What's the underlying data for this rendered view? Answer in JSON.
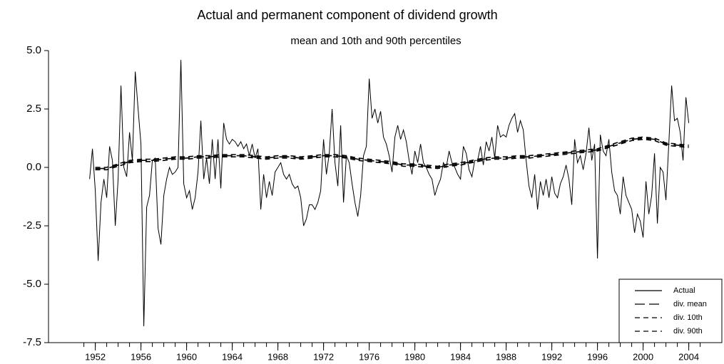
{
  "chart_data": {
    "type": "line",
    "title": "Actual and permanent component of dividend growth",
    "subtitle": "mean and 10th and 90th percentiles",
    "x": [
      1951.5,
      1951.75,
      1952,
      1952.25,
      1952.5,
      1952.75,
      1953,
      1953.25,
      1953.5,
      1953.75,
      1954,
      1954.25,
      1954.5,
      1954.75,
      1955,
      1955.25,
      1955.5,
      1955.75,
      1956,
      1956.25,
      1956.5,
      1956.75,
      1957,
      1957.25,
      1957.5,
      1957.75,
      1958,
      1958.25,
      1958.5,
      1958.75,
      1959,
      1959.25,
      1959.5,
      1959.75,
      1960,
      1960.25,
      1960.5,
      1960.75,
      1961,
      1961.25,
      1961.5,
      1961.75,
      1962,
      1962.25,
      1962.5,
      1962.75,
      1963,
      1963.25,
      1963.5,
      1963.75,
      1964,
      1964.25,
      1964.5,
      1964.75,
      1965,
      1965.25,
      1965.5,
      1965.75,
      1966,
      1966.25,
      1966.5,
      1966.75,
      1967,
      1967.25,
      1967.5,
      1967.75,
      1968,
      1968.25,
      1968.5,
      1968.75,
      1969,
      1969.25,
      1969.5,
      1969.75,
      1970,
      1970.25,
      1970.5,
      1970.75,
      1971,
      1971.25,
      1971.5,
      1971.75,
      1972,
      1972.25,
      1972.5,
      1972.75,
      1973,
      1973.25,
      1973.5,
      1973.75,
      1974,
      1974.25,
      1974.5,
      1974.75,
      1975,
      1975.25,
      1975.5,
      1975.75,
      1976,
      1976.25,
      1976.5,
      1976.75,
      1977,
      1977.25,
      1977.5,
      1977.75,
      1978,
      1978.25,
      1978.5,
      1978.75,
      1979,
      1979.25,
      1979.5,
      1979.75,
      1980,
      1980.25,
      1980.5,
      1980.75,
      1981,
      1981.25,
      1981.5,
      1981.75,
      1982,
      1982.25,
      1982.5,
      1982.75,
      1983,
      1983.25,
      1983.5,
      1983.75,
      1984,
      1984.25,
      1984.5,
      1984.75,
      1985,
      1985.25,
      1985.5,
      1985.75,
      1986,
      1986.25,
      1986.5,
      1986.75,
      1987,
      1987.25,
      1987.5,
      1987.75,
      1988,
      1988.25,
      1988.5,
      1988.75,
      1989,
      1989.25,
      1989.5,
      1989.75,
      1990,
      1990.25,
      1990.5,
      1990.75,
      1991,
      1991.25,
      1991.5,
      1991.75,
      1992,
      1992.25,
      1992.5,
      1992.75,
      1993,
      1993.25,
      1993.5,
      1993.75,
      1994,
      1994.25,
      1994.5,
      1994.75,
      1995,
      1995.25,
      1995.5,
      1995.75,
      1996,
      1996.25,
      1996.5,
      1996.75,
      1997,
      1997.25,
      1997.5,
      1997.75,
      1998,
      1998.25,
      1998.5,
      1998.75,
      1999,
      1999.25,
      1999.5,
      1999.75,
      2000,
      2000.25,
      2000.5,
      2000.75,
      2001,
      2001.25,
      2001.5,
      2001.75,
      2002,
      2002.25,
      2002.5,
      2002.75,
      2003,
      2003.25,
      2003.5,
      2003.75,
      2004
    ],
    "series": [
      {
        "name": "Actual",
        "color": "#000000",
        "dash": "solid",
        "values": [
          -0.5,
          0.8,
          -1.0,
          -4.0,
          -1.5,
          -0.5,
          -1.3,
          0.9,
          0.3,
          -2.5,
          -0.5,
          3.5,
          0.0,
          -0.4,
          1.5,
          0.3,
          4.1,
          2.5,
          1.0,
          -6.8,
          -1.7,
          -1.2,
          0.3,
          0.4,
          -2.6,
          -3.3,
          -1.2,
          -0.5,
          0.0,
          -0.3,
          -0.2,
          0.0,
          4.6,
          -0.7,
          -1.3,
          -1.0,
          -1.8,
          -1.3,
          -0.2,
          2.0,
          -0.5,
          0.4,
          -0.7,
          1.2,
          -0.5,
          1.2,
          -0.9,
          1.9,
          1.2,
          1.0,
          1.2,
          1.1,
          0.9,
          1.1,
          0.8,
          1.0,
          0.5,
          1.0,
          0.4,
          0.8,
          -1.8,
          -0.3,
          -1.3,
          -0.6,
          -1.2,
          -0.2,
          0.0,
          0.2,
          -0.3,
          -0.5,
          -0.3,
          -0.7,
          -0.9,
          -0.8,
          -1.3,
          -2.5,
          -2.2,
          -1.6,
          -1.6,
          -1.8,
          -1.5,
          -1.0,
          1.2,
          -0.3,
          0.6,
          2.5,
          0.2,
          -0.8,
          1.8,
          -1.5,
          0.5,
          0.2,
          -0.7,
          -1.5,
          -2.1,
          -1.2,
          0.5,
          0.9,
          3.8,
          2.1,
          2.5,
          1.9,
          2.4,
          1.3,
          1.0,
          0.5,
          -0.2,
          1.3,
          1.8,
          1.2,
          1.6,
          1.1,
          0.3,
          -0.3,
          0.7,
          0.2,
          1.0,
          0.2,
          0.0,
          -0.3,
          -0.5,
          -1.2,
          -0.8,
          -0.5,
          0.2,
          0.0,
          0.7,
          0.2,
          0.0,
          -0.3,
          -0.5,
          0.9,
          0.6,
          -0.1,
          -0.4,
          0.3,
          0.3,
          0.9,
          0.1,
          1.1,
          0.7,
          1.3,
          0.4,
          1.8,
          1.3,
          1.4,
          1.3,
          1.8,
          2.1,
          2.3,
          1.5,
          2.0,
          1.6,
          0.3,
          -0.8,
          -1.3,
          -0.3,
          -1.8,
          -0.6,
          -1.2,
          -0.5,
          -1.3,
          -0.4,
          -1.1,
          -1.3,
          -0.7,
          -0.4,
          0.1,
          -0.5,
          -1.6,
          1.2,
          0.2,
          0.5,
          -0.1,
          0.6,
          1.7,
          0.3,
          1.0,
          -3.9,
          1.4,
          0.7,
          0.5,
          1.2,
          -0.2,
          -1.0,
          -1.2,
          -2.0,
          -0.4,
          -1.2,
          -1.5,
          -1.8,
          -2.8,
          -2.0,
          -2.3,
          -3.0,
          -0.6,
          -2.0,
          -1.2,
          0.6,
          -2.4,
          0.0,
          -0.2,
          -1.4,
          1.0,
          3.5,
          2.0,
          2.1,
          1.5,
          0.3,
          3.0,
          1.9
        ]
      },
      {
        "name": "div. mean",
        "color": "#000000",
        "dash": "long",
        "x": [
          1952,
          1953,
          1954,
          1955,
          1956,
          1957,
          1958,
          1959,
          1960,
          1961,
          1962,
          1963,
          1964,
          1965,
          1966,
          1967,
          1968,
          1969,
          1970,
          1971,
          1972,
          1973,
          1974,
          1975,
          1976,
          1977,
          1978,
          1979,
          1980,
          1981,
          1982,
          1983,
          1984,
          1985,
          1986,
          1987,
          1988,
          1989,
          1990,
          1991,
          1992,
          1993,
          1994,
          1995,
          1996,
          1997,
          1998,
          1999,
          2000,
          2001,
          2002,
          2003,
          2004
        ],
        "values": [
          -0.05,
          -0.05,
          0.1,
          0.25,
          0.3,
          0.3,
          0.35,
          0.4,
          0.4,
          0.45,
          0.45,
          0.5,
          0.5,
          0.5,
          0.45,
          0.4,
          0.45,
          0.45,
          0.4,
          0.45,
          0.5,
          0.5,
          0.45,
          0.35,
          0.3,
          0.25,
          0.2,
          0.1,
          0.1,
          0.05,
          0.0,
          0.1,
          0.15,
          0.25,
          0.35,
          0.4,
          0.4,
          0.45,
          0.45,
          0.5,
          0.55,
          0.6,
          0.65,
          0.7,
          0.75,
          0.9,
          1.05,
          1.2,
          1.25,
          1.2,
          1.0,
          0.95,
          0.9
        ]
      },
      {
        "name": "div. 10th",
        "color": "#000000",
        "dash": "short",
        "x": [
          1952,
          1953,
          1954,
          1955,
          1956,
          1957,
          1958,
          1959,
          1960,
          1961,
          1962,
          1963,
          1964,
          1965,
          1966,
          1967,
          1968,
          1969,
          1970,
          1971,
          1972,
          1973,
          1974,
          1975,
          1976,
          1977,
          1978,
          1979,
          1980,
          1981,
          1982,
          1983,
          1984,
          1985,
          1986,
          1987,
          1988,
          1989,
          1990,
          1991,
          1992,
          1993,
          1994,
          1995,
          1996,
          1997,
          1998,
          1999,
          2000,
          2001,
          2002,
          2003,
          2004
        ],
        "values": [
          -0.1,
          -0.1,
          0.05,
          0.2,
          0.25,
          0.25,
          0.3,
          0.35,
          0.35,
          0.4,
          0.4,
          0.45,
          0.45,
          0.45,
          0.4,
          0.35,
          0.4,
          0.4,
          0.35,
          0.4,
          0.45,
          0.45,
          0.4,
          0.3,
          0.25,
          0.2,
          0.15,
          0.05,
          0.05,
          0.0,
          -0.05,
          0.05,
          0.1,
          0.2,
          0.3,
          0.35,
          0.35,
          0.4,
          0.4,
          0.45,
          0.5,
          0.55,
          0.6,
          0.65,
          0.7,
          0.85,
          1.0,
          1.15,
          1.2,
          1.15,
          0.95,
          0.9,
          0.85
        ]
      },
      {
        "name": "div. 90th",
        "color": "#000000",
        "dash": "short",
        "x": [
          1952,
          1953,
          1954,
          1955,
          1956,
          1957,
          1958,
          1959,
          1960,
          1961,
          1962,
          1963,
          1964,
          1965,
          1966,
          1967,
          1968,
          1969,
          1970,
          1971,
          1972,
          1973,
          1974,
          1975,
          1976,
          1977,
          1978,
          1979,
          1980,
          1981,
          1982,
          1983,
          1984,
          1985,
          1986,
          1987,
          1988,
          1989,
          1990,
          1991,
          1992,
          1993,
          1994,
          1995,
          1996,
          1997,
          1998,
          1999,
          2000,
          2001,
          2002,
          2003,
          2004
        ],
        "values": [
          0.0,
          0.0,
          0.15,
          0.3,
          0.35,
          0.35,
          0.4,
          0.45,
          0.45,
          0.5,
          0.5,
          0.55,
          0.55,
          0.55,
          0.5,
          0.45,
          0.5,
          0.5,
          0.45,
          0.5,
          0.55,
          0.55,
          0.5,
          0.4,
          0.35,
          0.3,
          0.25,
          0.15,
          0.15,
          0.1,
          0.05,
          0.15,
          0.2,
          0.3,
          0.4,
          0.45,
          0.45,
          0.5,
          0.5,
          0.55,
          0.6,
          0.65,
          0.7,
          0.75,
          0.8,
          0.95,
          1.1,
          1.25,
          1.3,
          1.25,
          1.05,
          1.0,
          0.95
        ]
      }
    ],
    "xlim": [
      1947.9,
      2006.9
    ],
    "xticks": [
      1952,
      1956,
      1960,
      1964,
      1968,
      1972,
      1976,
      1980,
      1984,
      1988,
      1992,
      1996,
      2000,
      2004
    ],
    "minor_xticks": [
      1951,
      1952,
      1953,
      1954,
      1955,
      1956,
      1957,
      1958,
      1959,
      1960,
      1961,
      1962,
      1963,
      1964,
      1965,
      1966,
      1967,
      1968,
      1969,
      1970,
      1971,
      1972,
      1973,
      1974,
      1975,
      1976,
      1977,
      1978,
      1979,
      1980,
      1981,
      1982,
      1983,
      1984,
      1985,
      1986,
      1987,
      1988,
      1989,
      1990,
      1991,
      1992,
      1993,
      1994,
      1995,
      1996,
      1997,
      1998,
      1999,
      2000,
      2001,
      2002,
      2003,
      2004,
      2005
    ],
    "ylim": [
      -7.5,
      5.0
    ],
    "yticks": [
      {
        "value": -7.5,
        "label": "-7.5"
      },
      {
        "value": -5,
        "label": "-5.0"
      },
      {
        "value": -2.5,
        "label": "-2.5"
      },
      {
        "value": 0,
        "label": "0.0"
      },
      {
        "value": 2.5,
        "label": "2.5"
      },
      {
        "value": 5,
        "label": "5.0"
      }
    ],
    "grid": false,
    "legend": "bottom-right"
  }
}
